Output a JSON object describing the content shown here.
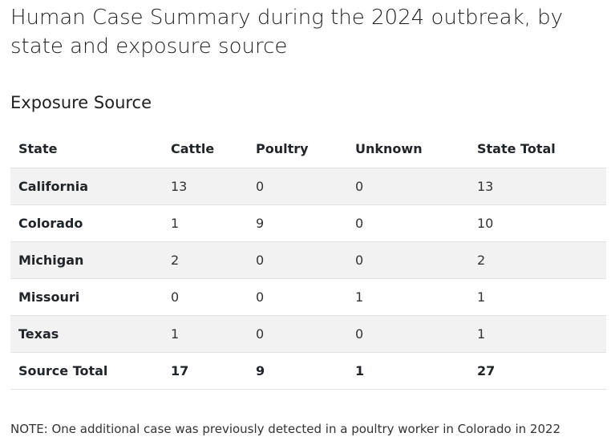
{
  "page": {
    "title": "Human Case Summary during the 2024 outbreak, by state and exposure source"
  },
  "section": {
    "heading": "Exposure Source"
  },
  "table": {
    "columns": [
      "State",
      "Cattle",
      "Poultry",
      "Unknown",
      "State Total"
    ],
    "rows": [
      [
        "California",
        "13",
        "0",
        "0",
        "13"
      ],
      [
        "Colorado",
        "1",
        "9",
        "0",
        "10"
      ],
      [
        "Michigan",
        "2",
        "0",
        "0",
        "2"
      ],
      [
        "Missouri",
        "0",
        "0",
        "1",
        "1"
      ],
      [
        "Texas",
        "1",
        "0",
        "0",
        "1"
      ],
      [
        "Source Total",
        "17",
        "9",
        "1",
        "27"
      ]
    ]
  },
  "note": {
    "text": "NOTE: One additional case was previously detected in a poultry worker in Colorado in 2022"
  }
}
